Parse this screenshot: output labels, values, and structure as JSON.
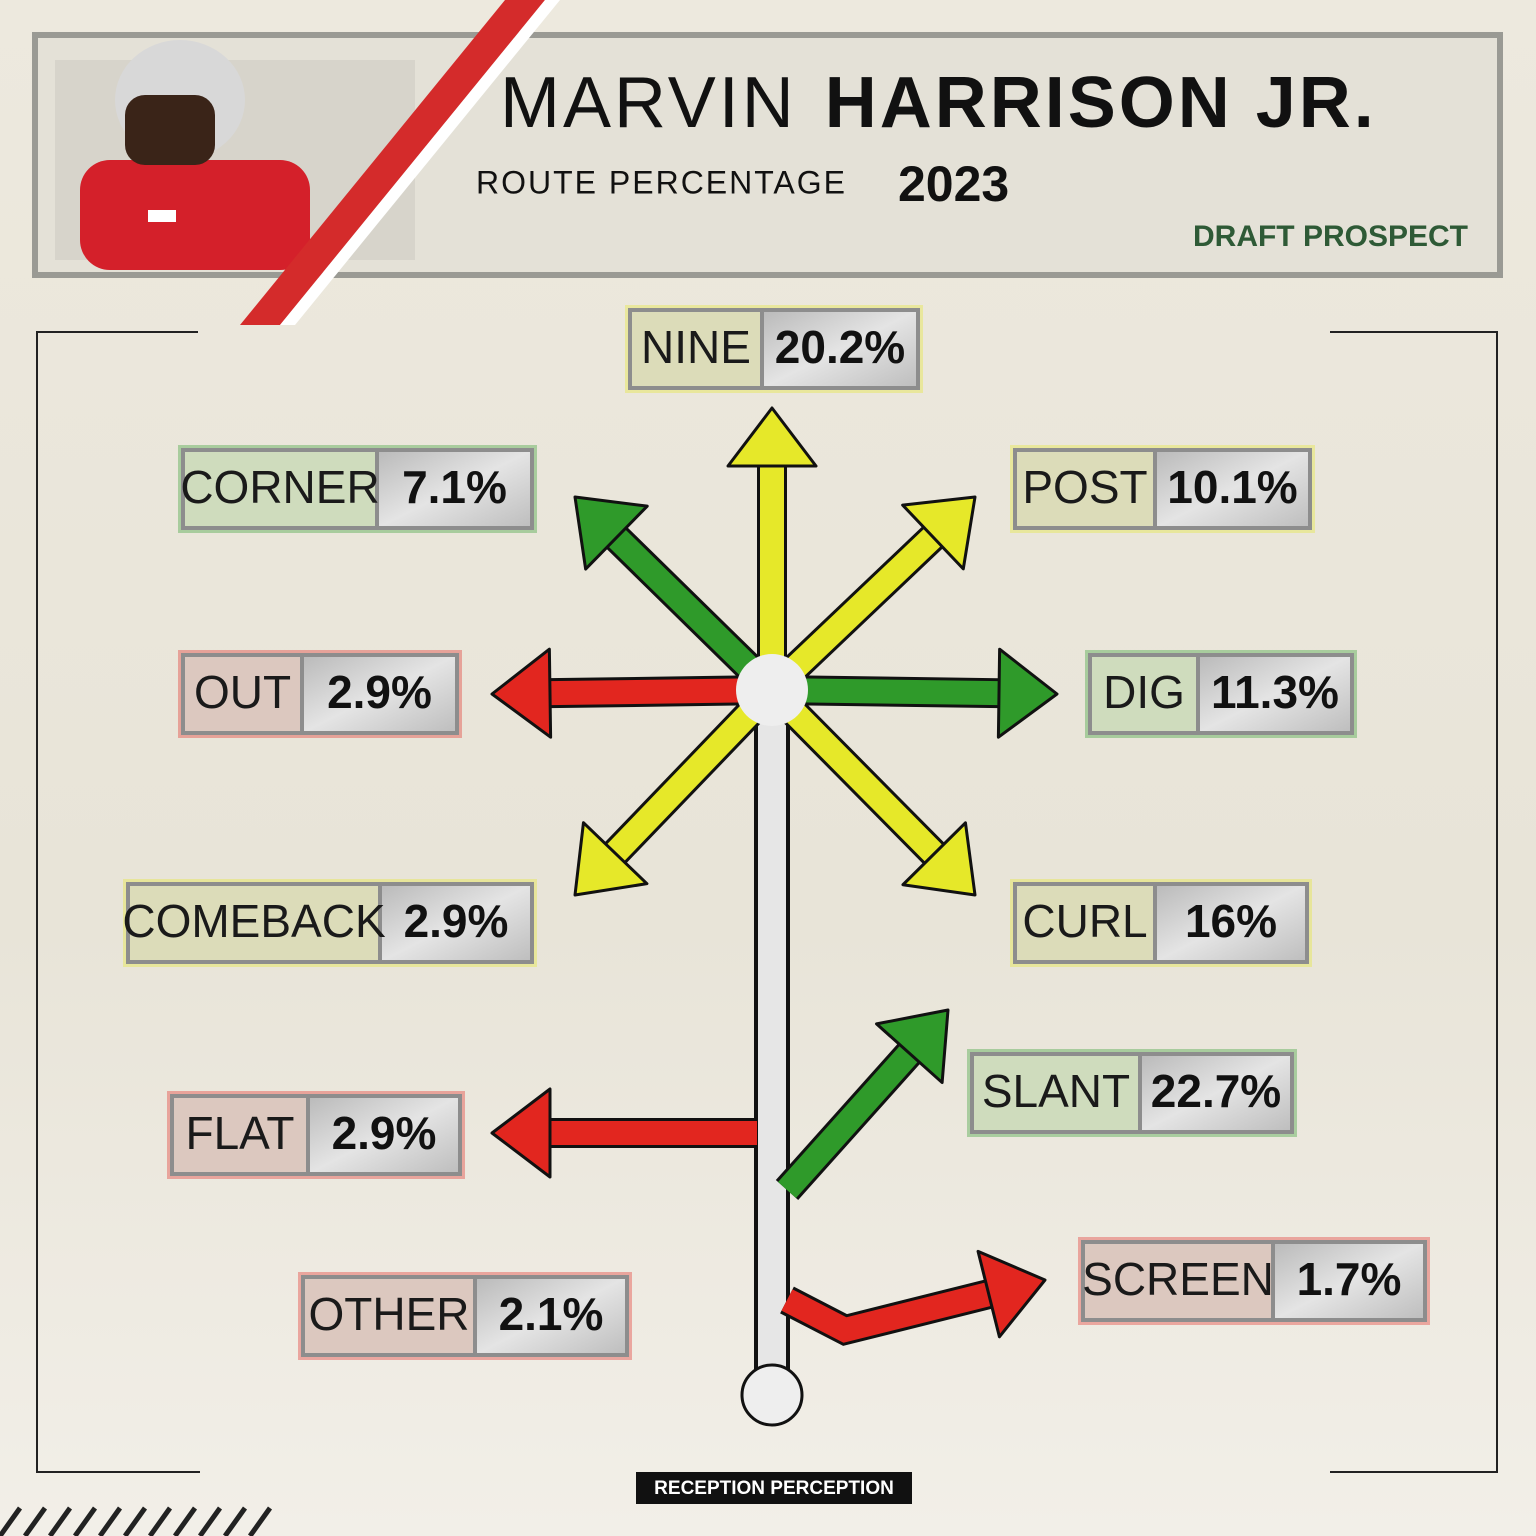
{
  "header": {
    "title_first": "MARVIN",
    "title_last": "HARRISON JR.",
    "subtitle": "ROUTE PERCENTAGE",
    "year": "2023",
    "tag": "DRAFT PROSPECT"
  },
  "routes": [
    {
      "name": "NINE",
      "percentage": "20.2%",
      "color": "#e6e829"
    },
    {
      "name": "CORNER",
      "percentage": "7.1%",
      "color": "#2f9a2a"
    },
    {
      "name": "POST",
      "percentage": "10.1%",
      "color": "#e6e829"
    },
    {
      "name": "OUT",
      "percentage": "2.9%",
      "color": "#e2261f"
    },
    {
      "name": "DIG",
      "percentage": "11.3%",
      "color": "#2f9a2a"
    },
    {
      "name": "COMEBACK",
      "percentage": "2.9%",
      "color": "#e6e829"
    },
    {
      "name": "CURL",
      "percentage": "16%",
      "color": "#e6e829"
    },
    {
      "name": "SLANT",
      "percentage": "22.7%",
      "color": "#2f9a2a"
    },
    {
      "name": "FLAT",
      "percentage": "2.9%",
      "color": "#e2261f"
    },
    {
      "name": "SCREEN",
      "percentage": "1.7%",
      "color": "#e2261f"
    },
    {
      "name": "OTHER",
      "percentage": "2.1%",
      "color": "#e2261f"
    }
  ],
  "footer": {
    "logo": "RECEPTION PERCEPTION"
  }
}
